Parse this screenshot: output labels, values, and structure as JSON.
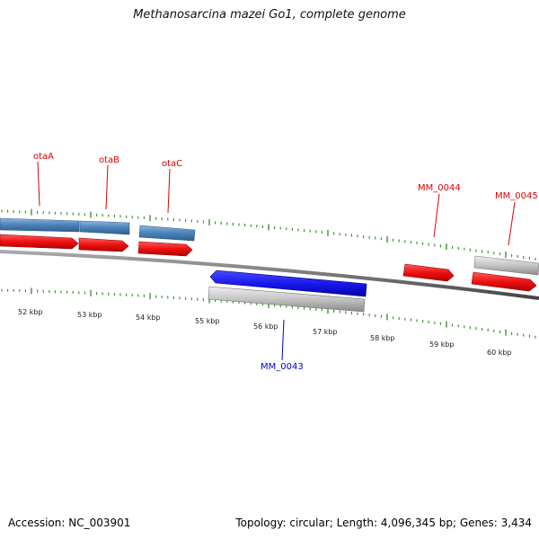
{
  "title": "Methanosarcina mazei Go1, complete genome",
  "accession_text": "Accession: NC_003901",
  "summary_text": "Topology: circular; Length: 4,096,345 bp; Genes: 3,434",
  "colors": {
    "backbone": "#777777",
    "tick": "#2e8b22",
    "gene_red": "#ee1111",
    "gene_blue": "#1a1aee",
    "gene_steelblue": "#4f86bd",
    "gene_gray": "#c4c4c4",
    "label_red": "#dd0000",
    "label_blue": "#0000cc"
  },
  "scale_labels": [
    "52 kbp",
    "53 kbp",
    "54 kbp",
    "55 kbp",
    "56 kbp",
    "57 kbp",
    "58 kbp",
    "59 kbp",
    "60 kbp"
  ],
  "gene_labels": [
    {
      "text": "otaA",
      "color": "red"
    },
    {
      "text": "otaB",
      "color": "red"
    },
    {
      "text": "otaC",
      "color": "red"
    },
    {
      "text": "MM_0044",
      "color": "red"
    },
    {
      "text": "MM_0045",
      "color": "red"
    },
    {
      "text": "MM_0043",
      "color": "blue"
    }
  ]
}
